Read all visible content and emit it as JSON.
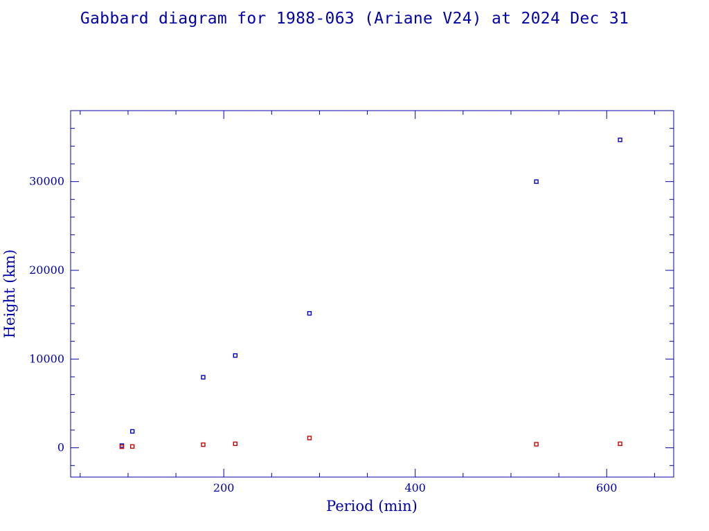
{
  "chart_data": {
    "type": "scatter",
    "title": "Gabbard diagram for 1988-063 (Ariane V24) at 2024 Dec 31",
    "xlabel": "Period (min)",
    "ylabel": "Height (km)",
    "xlim": [
      40,
      670
    ],
    "ylim": [
      -3300,
      38000
    ],
    "xticks": [
      200,
      400,
      600
    ],
    "yticks": [
      0,
      10000,
      20000,
      30000
    ],
    "grid": false,
    "colors": {
      "apogee": "#0000cc",
      "perigee": "#cc0000",
      "axes": "#0000aa"
    },
    "series": [
      {
        "key": "apogee",
        "color": "#0000cc",
        "x": [
          93.5,
          104.5,
          178.5,
          212,
          289.5,
          526.5,
          614
        ],
        "y": [
          250,
          1850,
          7950,
          10400,
          15150,
          30000,
          34700
        ]
      },
      {
        "key": "perigee",
        "color": "#cc0000",
        "x": [
          93.5,
          104.5,
          178.5,
          212,
          289.5,
          526.5,
          614
        ],
        "y": [
          120,
          150,
          350,
          450,
          1100,
          400,
          450
        ]
      }
    ]
  }
}
